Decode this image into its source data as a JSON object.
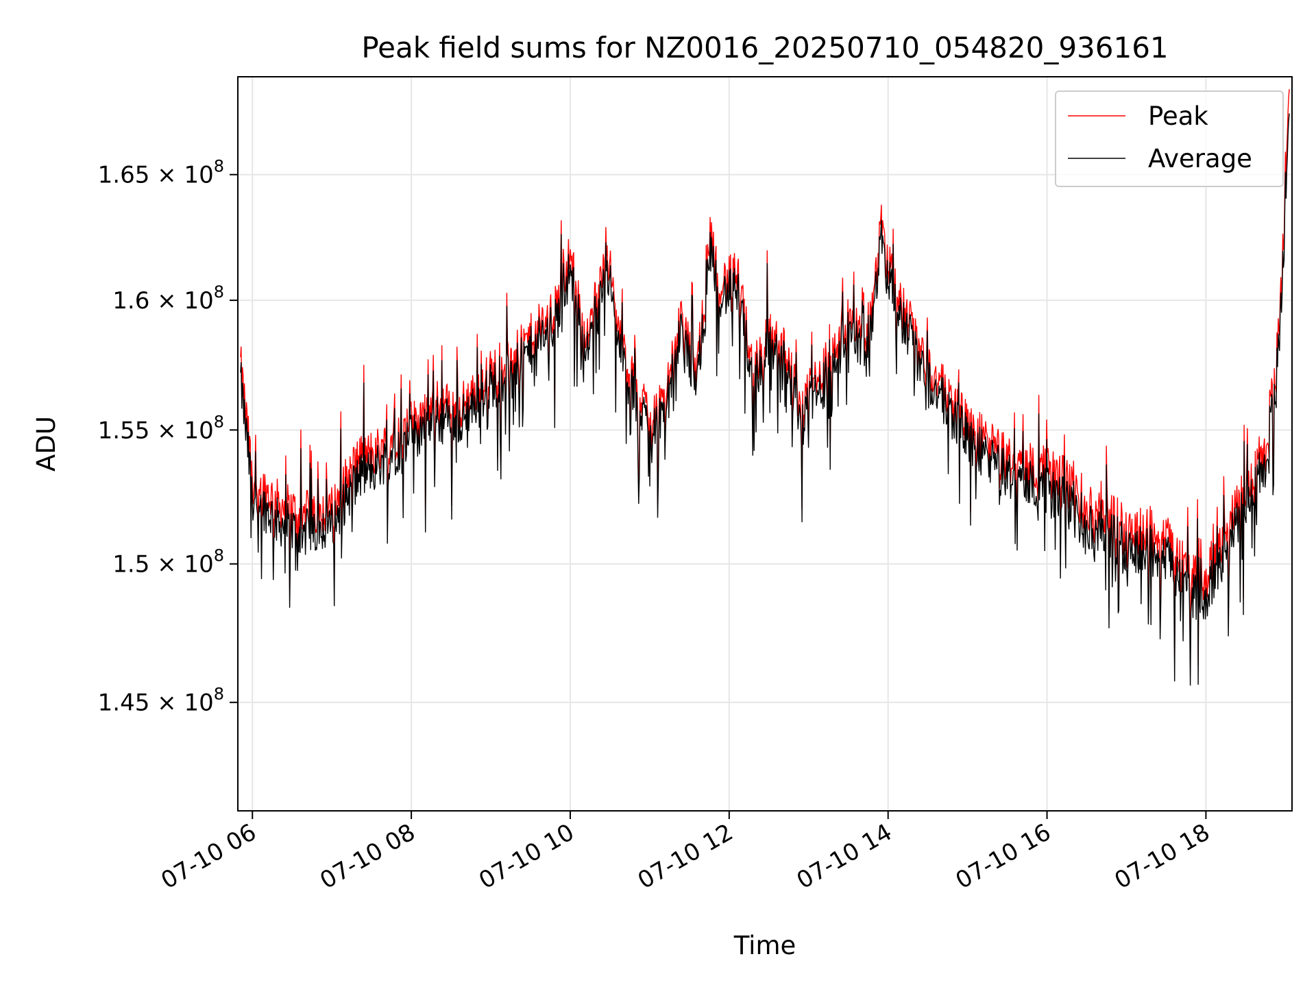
{
  "chart_data": {
    "type": "line",
    "title": "Peak field sums for NZ0016_20250710_054820_936161",
    "xlabel": "Time",
    "ylabel": "ADU",
    "y_scale": "log",
    "xlim": [
      "2025-07-10 05:49",
      "2025-07-10 19:05"
    ],
    "ylim": [
      141200000,
      169000000
    ],
    "x_ticks": [
      "07-10 06",
      "07-10 08",
      "07-10 10",
      "07-10 12",
      "07-10 14",
      "07-10 16",
      "07-10 18"
    ],
    "x_tick_hours": [
      6,
      8,
      10,
      12,
      14,
      16,
      18
    ],
    "y_ticks": [
      {
        "value": 145000000,
        "mantissa": "1.45",
        "exponent": "8"
      },
      {
        "value": 150000000,
        "mantissa": "1.5",
        "exponent": "8"
      },
      {
        "value": 155000000,
        "mantissa": "1.55",
        "exponent": "8"
      },
      {
        "value": 160000000,
        "mantissa": "1.6",
        "exponent": "8"
      },
      {
        "value": 165000000,
        "mantissa": "1.65",
        "exponent": "8"
      }
    ],
    "grid": true,
    "legend_position": "top-right",
    "series": [
      {
        "name": "Peak",
        "color": "#ff0000",
        "x_hours": [
          5.85,
          6.0,
          6.3,
          6.6,
          7.0,
          7.3,
          7.6,
          8.0,
          8.3,
          8.6,
          9.0,
          9.3,
          9.6,
          9.8,
          10.0,
          10.2,
          10.45,
          10.7,
          11.0,
          11.2,
          11.4,
          11.6,
          11.75,
          11.9,
          12.1,
          12.3,
          12.5,
          12.7,
          12.9,
          13.1,
          13.3,
          13.5,
          13.75,
          13.9,
          14.1,
          14.3,
          14.5,
          14.8,
          15.0,
          15.3,
          15.6,
          15.9,
          16.2,
          16.5,
          16.8,
          17.1,
          17.4,
          17.7,
          17.95,
          18.2,
          18.5,
          18.8,
          18.95,
          19.05
        ],
        "values": [
          157500000,
          153200000,
          152300000,
          151800000,
          152000000,
          153800000,
          154300000,
          155200000,
          156000000,
          155800000,
          157200000,
          157800000,
          158900000,
          159500000,
          161800000,
          158200000,
          161900000,
          157400000,
          155600000,
          156300000,
          159200000,
          157200000,
          162700000,
          160700000,
          161000000,
          157400000,
          158600000,
          158300000,
          155800000,
          156900000,
          157800000,
          159300000,
          158300000,
          162600000,
          160400000,
          158800000,
          157400000,
          156100000,
          155200000,
          154400000,
          153700000,
          153600000,
          153200000,
          152000000,
          151700000,
          151200000,
          151300000,
          150100000,
          149200000,
          150800000,
          152900000,
          154600000,
          160500000,
          168500000
        ]
      },
      {
        "name": "Average",
        "color": "#000000",
        "x_hours": [
          5.85,
          6.0,
          6.3,
          6.6,
          7.0,
          7.3,
          7.6,
          8.0,
          8.3,
          8.6,
          9.0,
          9.3,
          9.6,
          9.8,
          10.0,
          10.2,
          10.45,
          10.7,
          11.0,
          11.2,
          11.4,
          11.6,
          11.75,
          11.9,
          12.1,
          12.3,
          12.5,
          12.7,
          12.9,
          13.1,
          13.3,
          13.5,
          13.75,
          13.9,
          14.1,
          14.3,
          14.5,
          14.8,
          15.0,
          15.3,
          15.6,
          15.9,
          16.2,
          16.5,
          16.8,
          17.1,
          17.4,
          17.7,
          17.95,
          18.2,
          18.5,
          18.8,
          18.95,
          19.05
        ],
        "values": [
          156900000,
          152600000,
          151600000,
          151100000,
          151400000,
          153100000,
          153700000,
          154700000,
          155400000,
          155300000,
          156700000,
          157300000,
          158400000,
          159000000,
          161200000,
          157700000,
          161300000,
          156900000,
          155100000,
          155800000,
          158700000,
          156700000,
          162100000,
          160200000,
          160400000,
          156900000,
          158100000,
          157800000,
          155300000,
          156400000,
          157200000,
          158800000,
          157800000,
          162000000,
          159800000,
          158300000,
          156900000,
          155600000,
          154700000,
          153800000,
          153100000,
          152900000,
          152400000,
          151300000,
          151000000,
          150500000,
          150600000,
          149400000,
          148500000,
          150100000,
          152300000,
          154000000,
          159900000,
          167500000
        ]
      }
    ]
  }
}
